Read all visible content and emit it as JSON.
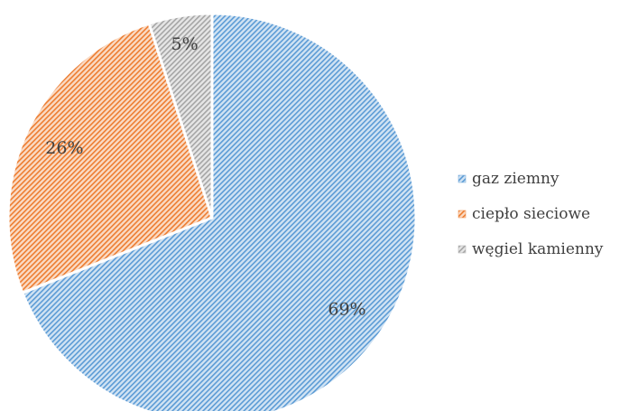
{
  "chart_data": {
    "type": "pie",
    "title": "",
    "categories": [
      "gaz ziemny",
      "ciepło sieciowe",
      "węgiel kamienny"
    ],
    "values": [
      69,
      26,
      5
    ],
    "labels": [
      "69%",
      "26%",
      "5%"
    ],
    "colors": [
      "#5B9BD5",
      "#ED7D31",
      "#A5A5A5"
    ],
    "fill_pattern": "diagonal-hatch",
    "start_angle_deg": 0,
    "direction": "clockwise",
    "legend_position": "right"
  }
}
